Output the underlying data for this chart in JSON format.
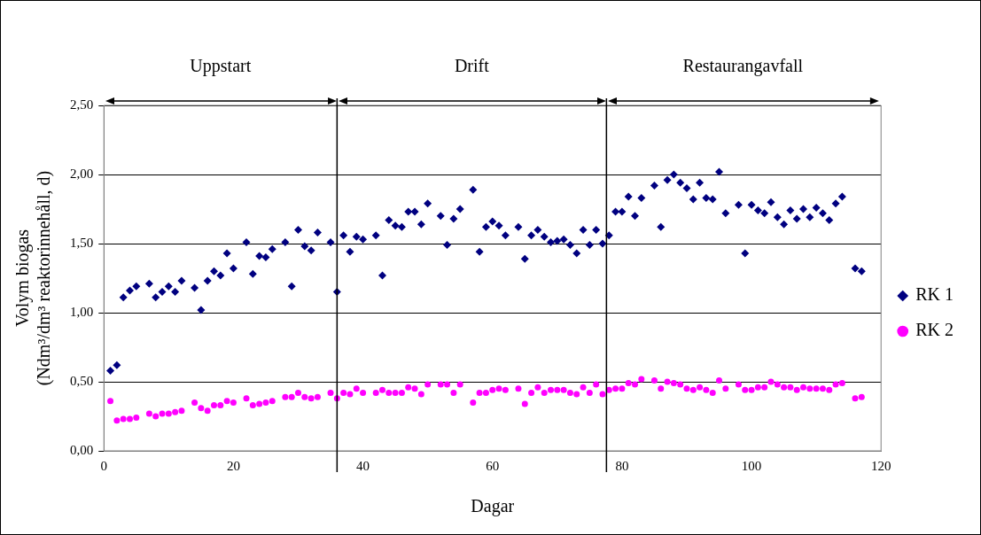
{
  "chart_data": {
    "type": "scatter",
    "xlabel": "Dagar",
    "ylabel": "Volym biogas\n(Ndm³/dm³ reaktorinnehåll, d)",
    "xlim": [
      0,
      120
    ],
    "xticks": [
      0,
      20,
      40,
      60,
      80,
      100,
      120
    ],
    "ylim": [
      0,
      2.5
    ],
    "yticks": [
      {
        "value": 0,
        "label": "0,00"
      },
      {
        "value": 0.5,
        "label": "0,50"
      },
      {
        "value": 1,
        "label": "1,00"
      },
      {
        "value": 1.5,
        "label": "1,50"
      },
      {
        "value": 2,
        "label": "2,00"
      },
      {
        "value": 2.5,
        "label": "2,50"
      }
    ],
    "grid": "y",
    "legend": "right",
    "ref_lines": [
      {
        "axis": "x",
        "value": 36,
        "color": "#000000"
      },
      {
        "axis": "x",
        "value": 77.6,
        "color": "#000000"
      }
    ],
    "annotations": [
      "Uppstart",
      "Drift",
      "Restaurangavfall"
    ],
    "series": [
      {
        "name": "RK 1",
        "color": "#000080",
        "marker": "diamond",
        "x": [
          1,
          2,
          3,
          4,
          5,
          7,
          8,
          9,
          10,
          11,
          12,
          14,
          15,
          16,
          17,
          18,
          19,
          20,
          22,
          23,
          24,
          25,
          26,
          28,
          29,
          30,
          31,
          32,
          33,
          35,
          36,
          37,
          38,
          39,
          40,
          42,
          43,
          44,
          45,
          46,
          47,
          48,
          49,
          50,
          52,
          53,
          54,
          55,
          57,
          58,
          59,
          60,
          61,
          62,
          64,
          65,
          66,
          67,
          68,
          69,
          70,
          71,
          72,
          73,
          74,
          75,
          76,
          77,
          78,
          79,
          80,
          81,
          82,
          83,
          85,
          86,
          87,
          88,
          89,
          90,
          91,
          92,
          93,
          94,
          95,
          96,
          98,
          99,
          100,
          101,
          102,
          103,
          104,
          105,
          106,
          107,
          108,
          109,
          110,
          111,
          112,
          113,
          114,
          116,
          117
        ],
        "values": [
          0.58,
          0.62,
          1.11,
          1.16,
          1.19,
          1.21,
          1.11,
          1.15,
          1.19,
          1.15,
          1.23,
          1.18,
          1.02,
          1.23,
          1.3,
          1.27,
          1.43,
          1.32,
          1.51,
          1.28,
          1.41,
          1.4,
          1.46,
          1.51,
          1.19,
          1.6,
          1.48,
          1.45,
          1.58,
          1.51,
          1.15,
          1.56,
          1.44,
          1.55,
          1.53,
          1.56,
          1.27,
          1.67,
          1.63,
          1.62,
          1.73,
          1.73,
          1.64,
          1.79,
          1.7,
          1.49,
          1.68,
          1.75,
          1.89,
          1.44,
          1.62,
          1.66,
          1.63,
          1.56,
          1.62,
          1.39,
          1.56,
          1.6,
          1.55,
          1.51,
          1.52,
          1.53,
          1.49,
          1.43,
          1.6,
          1.49,
          1.6,
          1.5,
          1.56,
          1.73,
          1.73,
          1.84,
          1.7,
          1.83,
          1.92,
          1.62,
          1.96,
          2.0,
          1.94,
          1.9,
          1.82,
          1.94,
          1.83,
          1.82,
          2.02,
          1.72,
          1.78,
          1.43,
          1.78,
          1.74,
          1.72,
          1.8,
          1.69,
          1.64,
          1.74,
          1.68,
          1.75,
          1.69,
          1.76,
          1.72,
          1.67,
          1.79,
          1.84,
          1.32,
          1.3
        ]
      },
      {
        "name": "RK 2",
        "color": "#ff00ff",
        "marker": "circle",
        "x": [
          1,
          2,
          3,
          4,
          5,
          7,
          8,
          9,
          10,
          11,
          12,
          14,
          15,
          16,
          17,
          18,
          19,
          20,
          22,
          23,
          24,
          25,
          26,
          28,
          29,
          30,
          31,
          32,
          33,
          35,
          36,
          37,
          38,
          39,
          40,
          42,
          43,
          44,
          45,
          46,
          47,
          48,
          49,
          50,
          52,
          53,
          54,
          55,
          57,
          58,
          59,
          60,
          61,
          62,
          64,
          65,
          66,
          67,
          68,
          69,
          70,
          71,
          72,
          73,
          74,
          75,
          76,
          77,
          78,
          79,
          80,
          81,
          82,
          83,
          85,
          86,
          87,
          88,
          89,
          90,
          91,
          92,
          93,
          94,
          95,
          96,
          98,
          99,
          100,
          101,
          102,
          103,
          104,
          105,
          106,
          107,
          108,
          109,
          110,
          111,
          112,
          113,
          114,
          116,
          117
        ],
        "values": [
          0.36,
          0.22,
          0.23,
          0.23,
          0.24,
          0.27,
          0.25,
          0.27,
          0.27,
          0.28,
          0.29,
          0.35,
          0.31,
          0.29,
          0.33,
          0.33,
          0.36,
          0.35,
          0.38,
          0.33,
          0.34,
          0.35,
          0.36,
          0.39,
          0.39,
          0.42,
          0.39,
          0.38,
          0.39,
          0.42,
          0.38,
          0.42,
          0.41,
          0.45,
          0.42,
          0.42,
          0.44,
          0.42,
          0.42,
          0.42,
          0.46,
          0.45,
          0.41,
          0.48,
          0.48,
          0.48,
          0.42,
          0.48,
          0.35,
          0.42,
          0.42,
          0.44,
          0.45,
          0.44,
          0.45,
          0.34,
          0.42,
          0.46,
          0.42,
          0.44,
          0.44,
          0.44,
          0.42,
          0.41,
          0.46,
          0.42,
          0.48,
          0.41,
          0.44,
          0.45,
          0.45,
          0.49,
          0.48,
          0.52,
          0.51,
          0.45,
          0.5,
          0.49,
          0.48,
          0.45,
          0.44,
          0.46,
          0.44,
          0.42,
          0.51,
          0.45,
          0.48,
          0.44,
          0.44,
          0.46,
          0.46,
          0.5,
          0.48,
          0.46,
          0.46,
          0.44,
          0.46,
          0.45,
          0.45,
          0.45,
          0.44,
          0.48,
          0.49,
          0.38,
          0.39
        ]
      }
    ]
  }
}
